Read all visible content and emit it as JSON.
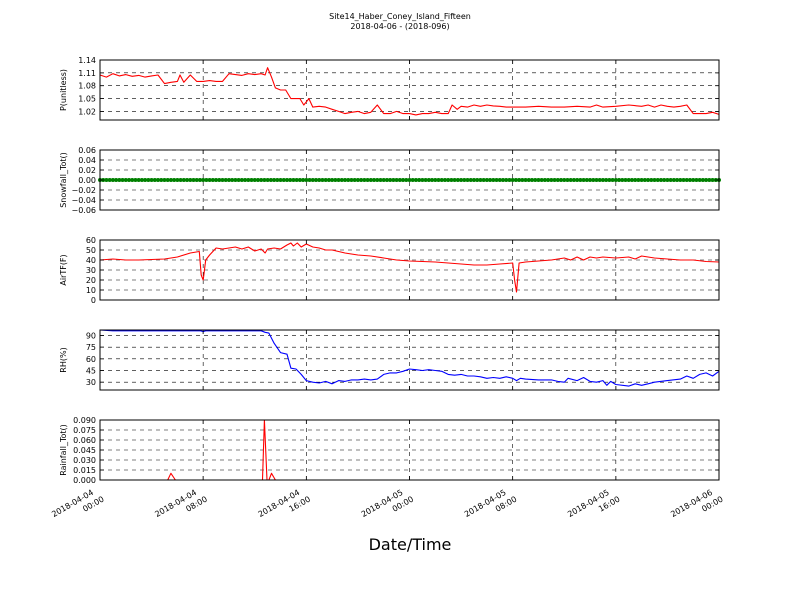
{
  "chart_data": {
    "type": "line",
    "title": "Site14_Haber_Coney_Island_Fifteen",
    "subtitle": "2018-04-06 - (2018-096)",
    "xlabel": "Date/Time",
    "grid": true,
    "x_range_hours": [
      0,
      48
    ],
    "x_ticks": [
      {
        "hour": 0,
        "line1": "2018-04-04",
        "line2": "00:00"
      },
      {
        "hour": 8,
        "line1": "2018-04-04",
        "line2": "08:00"
      },
      {
        "hour": 16,
        "line1": "2018-04-04",
        "line2": "16:00"
      },
      {
        "hour": 24,
        "line1": "2018-04-05",
        "line2": "00:00"
      },
      {
        "hour": 32,
        "line1": "2018-04-05",
        "line2": "08:00"
      },
      {
        "hour": 40,
        "line1": "2018-04-05",
        "line2": "16:00"
      },
      {
        "hour": 48,
        "line1": "2018-04-06",
        "line2": "00:00"
      }
    ],
    "panels": [
      {
        "id": "P",
        "ylabel": "P(unitless)",
        "ylim": [
          1.0,
          1.14
        ],
        "yticks": [
          1.02,
          1.05,
          1.08,
          1.11,
          1.14
        ],
        "ytick_labels": [
          "1.02",
          "1.05",
          "1.08",
          "1.11",
          "1.14"
        ],
        "color": "#ff0000",
        "marker": "line",
        "points": [
          [
            0,
            1.105
          ],
          [
            0.5,
            1.1
          ],
          [
            1,
            1.108
          ],
          [
            1.5,
            1.103
          ],
          [
            2,
            1.106
          ],
          [
            2.5,
            1.102
          ],
          [
            3,
            1.104
          ],
          [
            3.5,
            1.1
          ],
          [
            4,
            1.103
          ],
          [
            4.5,
            1.105
          ],
          [
            5,
            1.085
          ],
          [
            5.5,
            1.088
          ],
          [
            6,
            1.09
          ],
          [
            6.2,
            1.105
          ],
          [
            6.5,
            1.088
          ],
          [
            7,
            1.105
          ],
          [
            7.5,
            1.09
          ],
          [
            8,
            1.09
          ],
          [
            8.5,
            1.092
          ],
          [
            9,
            1.09
          ],
          [
            9.5,
            1.09
          ],
          [
            10,
            1.108
          ],
          [
            10.5,
            1.106
          ],
          [
            11,
            1.104
          ],
          [
            11.5,
            1.108
          ],
          [
            12,
            1.106
          ],
          [
            12.5,
            1.108
          ],
          [
            12.8,
            1.105
          ],
          [
            13,
            1.122
          ],
          [
            13.3,
            1.1
          ],
          [
            13.6,
            1.075
          ],
          [
            14,
            1.07
          ],
          [
            14.4,
            1.07
          ],
          [
            14.8,
            1.05
          ],
          [
            15.5,
            1.05
          ],
          [
            15.8,
            1.035
          ],
          [
            16.2,
            1.05
          ],
          [
            16.5,
            1.03
          ],
          [
            17,
            1.032
          ],
          [
            17.5,
            1.03
          ],
          [
            18,
            1.025
          ],
          [
            18.5,
            1.02
          ],
          [
            19,
            1.015
          ],
          [
            19.5,
            1.018
          ],
          [
            20,
            1.02
          ],
          [
            20.5,
            1.015
          ],
          [
            21,
            1.018
          ],
          [
            21.5,
            1.035
          ],
          [
            22,
            1.015
          ],
          [
            22.5,
            1.015
          ],
          [
            23,
            1.02
          ],
          [
            23.5,
            1.015
          ],
          [
            24,
            1.015
          ],
          [
            24.5,
            1.012
          ],
          [
            25,
            1.015
          ],
          [
            25.5,
            1.015
          ],
          [
            26,
            1.018
          ],
          [
            26.5,
            1.015
          ],
          [
            27,
            1.015
          ],
          [
            27.3,
            1.035
          ],
          [
            27.7,
            1.025
          ],
          [
            28,
            1.032
          ],
          [
            28.5,
            1.03
          ],
          [
            29,
            1.035
          ],
          [
            29.5,
            1.032
          ],
          [
            30,
            1.035
          ],
          [
            30.5,
            1.033
          ],
          [
            31,
            1.032
          ],
          [
            31.5,
            1.03
          ],
          [
            32,
            1.03
          ],
          [
            33,
            1.03
          ],
          [
            34,
            1.032
          ],
          [
            35,
            1.03
          ],
          [
            36,
            1.03
          ],
          [
            37,
            1.032
          ],
          [
            38,
            1.03
          ],
          [
            38.5,
            1.035
          ],
          [
            39,
            1.03
          ],
          [
            40,
            1.032
          ],
          [
            41,
            1.035
          ],
          [
            42,
            1.032
          ],
          [
            42.5,
            1.035
          ],
          [
            43,
            1.03
          ],
          [
            43.5,
            1.035
          ],
          [
            44,
            1.032
          ],
          [
            44.5,
            1.03
          ],
          [
            45,
            1.032
          ],
          [
            45.5,
            1.035
          ],
          [
            46,
            1.015
          ],
          [
            47,
            1.015
          ],
          [
            47.5,
            1.018
          ],
          [
            48,
            1.013
          ]
        ]
      },
      {
        "id": "Snowfall",
        "ylabel": "Snowfall_Tot()",
        "ylim": [
          -0.06,
          0.06
        ],
        "yticks": [
          -0.06,
          -0.04,
          -0.02,
          0.0,
          0.02,
          0.04,
          0.06
        ],
        "ytick_labels": [
          "−0.06",
          "−0.04",
          "−0.02",
          "0.00",
          "0.02",
          "0.04",
          "0.06"
        ],
        "color": "#008000",
        "marker": "dots",
        "constant_value": 0.0,
        "sample_interval_hours": 0.25
      },
      {
        "id": "AirTF",
        "ylabel": "AirTF(F)",
        "ylim": [
          0,
          60
        ],
        "yticks": [
          0,
          10,
          20,
          30,
          40,
          50,
          60
        ],
        "ytick_labels": [
          "0",
          "10",
          "20",
          "30",
          "40",
          "50",
          "60"
        ],
        "color": "#ff0000",
        "marker": "line",
        "points": [
          [
            0,
            40
          ],
          [
            1,
            41
          ],
          [
            2,
            40
          ],
          [
            3,
            40
          ],
          [
            4,
            40.5
          ],
          [
            5,
            41
          ],
          [
            6,
            43
          ],
          [
            7,
            47
          ],
          [
            7.7,
            48.5
          ],
          [
            7.85,
            25
          ],
          [
            8,
            20
          ],
          [
            8.2,
            40
          ],
          [
            8.5,
            45
          ],
          [
            9,
            52
          ],
          [
            9.5,
            51
          ],
          [
            10,
            52
          ],
          [
            10.5,
            53
          ],
          [
            11,
            51
          ],
          [
            11.5,
            53
          ],
          [
            12,
            49
          ],
          [
            12.5,
            51
          ],
          [
            12.8,
            47
          ],
          [
            13,
            51
          ],
          [
            13.5,
            52
          ],
          [
            14,
            51
          ],
          [
            14.5,
            55
          ],
          [
            14.8,
            57
          ],
          [
            15,
            54
          ],
          [
            15.3,
            57
          ],
          [
            15.6,
            53
          ],
          [
            16,
            56
          ],
          [
            16.5,
            53
          ],
          [
            17,
            52
          ],
          [
            17.5,
            50
          ],
          [
            18,
            50
          ],
          [
            19,
            47
          ],
          [
            20,
            45
          ],
          [
            21,
            44
          ],
          [
            22,
            42
          ],
          [
            23,
            40
          ],
          [
            24,
            39
          ],
          [
            25,
            38.5
          ],
          [
            26,
            38
          ],
          [
            27,
            37
          ],
          [
            28,
            36
          ],
          [
            29,
            35
          ],
          [
            30,
            35
          ],
          [
            31,
            36
          ],
          [
            32,
            37
          ],
          [
            32.15,
            20
          ],
          [
            32.3,
            8
          ],
          [
            32.5,
            37
          ],
          [
            33,
            38
          ],
          [
            34,
            39
          ],
          [
            35,
            40
          ],
          [
            36,
            42
          ],
          [
            36.5,
            40
          ],
          [
            37,
            43
          ],
          [
            37.5,
            40
          ],
          [
            38,
            43
          ],
          [
            38.5,
            42
          ],
          [
            39,
            43
          ],
          [
            40,
            42
          ],
          [
            41,
            43
          ],
          [
            41.5,
            41
          ],
          [
            42,
            44
          ],
          [
            43,
            42
          ],
          [
            44,
            41
          ],
          [
            45,
            40
          ],
          [
            46,
            40
          ],
          [
            47,
            38.5
          ],
          [
            48,
            38
          ]
        ]
      },
      {
        "id": "RH",
        "ylabel": "RH(%)",
        "ylim": [
          20,
          97
        ],
        "yticks": [
          30,
          45,
          60,
          75,
          90
        ],
        "ytick_labels": [
          "30",
          "45",
          "60",
          "75",
          "90"
        ],
        "color": "#0000ff",
        "marker": "line",
        "points": [
          [
            0,
            97
          ],
          [
            1,
            96
          ],
          [
            2,
            96
          ],
          [
            3,
            96
          ],
          [
            4,
            96
          ],
          [
            5,
            96
          ],
          [
            6,
            96
          ],
          [
            7,
            96
          ],
          [
            7.8,
            96
          ],
          [
            8,
            95
          ],
          [
            8.2,
            96
          ],
          [
            9,
            96
          ],
          [
            10,
            96
          ],
          [
            11,
            96
          ],
          [
            12,
            96
          ],
          [
            12.5,
            96
          ],
          [
            12.8,
            94
          ],
          [
            13.1,
            93
          ],
          [
            13.5,
            80
          ],
          [
            14,
            68
          ],
          [
            14.5,
            66
          ],
          [
            14.8,
            48
          ],
          [
            15.2,
            47
          ],
          [
            15.6,
            40
          ],
          [
            16,
            32
          ],
          [
            16.5,
            30
          ],
          [
            17,
            29
          ],
          [
            17.5,
            31
          ],
          [
            18,
            28
          ],
          [
            18.5,
            32
          ],
          [
            19,
            31
          ],
          [
            19.5,
            33
          ],
          [
            20,
            33
          ],
          [
            20.5,
            34
          ],
          [
            21,
            33
          ],
          [
            21.5,
            34
          ],
          [
            22,
            40
          ],
          [
            22.5,
            42
          ],
          [
            23,
            42
          ],
          [
            23.5,
            44
          ],
          [
            24,
            47
          ],
          [
            24.5,
            46
          ],
          [
            25,
            45
          ],
          [
            25.5,
            46
          ],
          [
            26,
            45
          ],
          [
            26.5,
            44
          ],
          [
            27,
            40
          ],
          [
            27.5,
            39
          ],
          [
            28,
            40
          ],
          [
            28.5,
            38
          ],
          [
            29,
            38
          ],
          [
            29.5,
            37
          ],
          [
            30,
            35
          ],
          [
            30.5,
            36
          ],
          [
            31,
            35
          ],
          [
            31.5,
            37
          ],
          [
            32,
            35
          ],
          [
            32.3,
            32
          ],
          [
            32.6,
            35
          ],
          [
            33,
            34
          ],
          [
            34,
            33
          ],
          [
            35,
            33
          ],
          [
            35.5,
            31
          ],
          [
            36,
            30
          ],
          [
            36.3,
            35
          ],
          [
            37,
            32
          ],
          [
            37.5,
            36
          ],
          [
            38,
            31
          ],
          [
            38.5,
            30
          ],
          [
            39,
            32
          ],
          [
            39.3,
            26
          ],
          [
            39.6,
            31
          ],
          [
            40,
            27
          ],
          [
            41,
            25
          ],
          [
            41.5,
            28
          ],
          [
            42,
            26
          ],
          [
            42.5,
            28
          ],
          [
            43,
            30
          ],
          [
            44,
            32
          ],
          [
            45,
            34
          ],
          [
            45.5,
            38
          ],
          [
            46,
            35
          ],
          [
            46.5,
            40
          ],
          [
            47,
            42
          ],
          [
            47.5,
            38
          ],
          [
            48,
            44
          ]
        ]
      },
      {
        "id": "Rainfall",
        "ylabel": "Rainfall_Tot()",
        "ylim": [
          0,
          0.09
        ],
        "yticks": [
          0.0,
          0.015,
          0.03,
          0.045,
          0.06,
          0.075,
          0.09
        ],
        "ytick_labels": [
          "0.000",
          "0.015",
          "0.030",
          "0.045",
          "0.060",
          "0.075",
          "0.090"
        ],
        "color": "#ff0000",
        "marker": "line",
        "points": [
          [
            0,
            0
          ],
          [
            5.25,
            0
          ],
          [
            5.5,
            0.01
          ],
          [
            5.85,
            0
          ],
          [
            12.6,
            0
          ],
          [
            12.75,
            0.09
          ],
          [
            12.95,
            0
          ],
          [
            13.1,
            0
          ],
          [
            13.3,
            0.01
          ],
          [
            13.6,
            0
          ],
          [
            48,
            0
          ]
        ]
      }
    ]
  }
}
